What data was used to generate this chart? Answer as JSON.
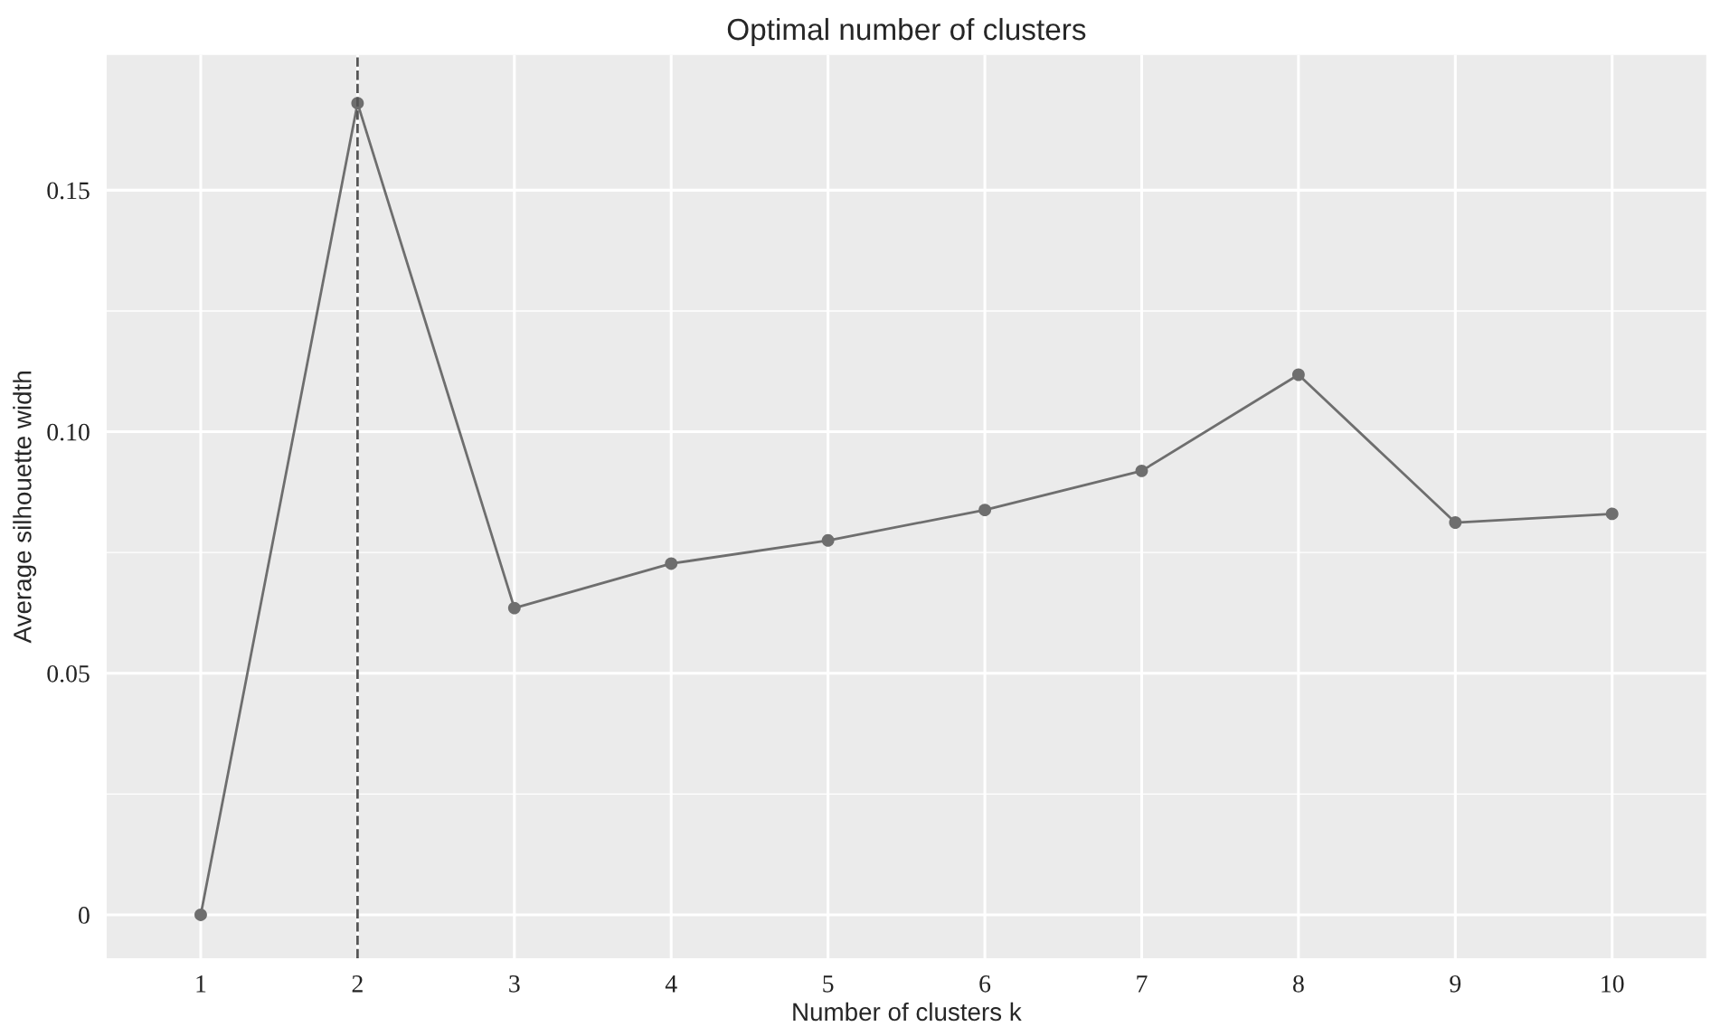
{
  "chart_data": {
    "type": "line",
    "title": "Optimal number of clusters",
    "xlabel": "Number of clusters k",
    "ylabel": "Average silhouette width",
    "categories": [
      "1",
      "2",
      "3",
      "4",
      "5",
      "6",
      "7",
      "8",
      "9",
      "10"
    ],
    "series": [
      {
        "color": "#6e6e6e",
        "values": [
          0,
          0.168,
          0.0635,
          0.0727,
          0.0775,
          0.0838,
          0.0919,
          0.1118,
          0.0812,
          0.083
        ]
      }
    ],
    "ylim": [
      -0.009,
      0.178
    ],
    "yticks": [
      0,
      {
        "value": 0.05,
        "label": "0.05"
      },
      {
        "value": 0.1,
        "label": "0.10"
      },
      {
        "value": 0.15,
        "label": "0.15"
      }
    ],
    "ref_lines": [
      {
        "axis": "x",
        "value": "2",
        "line_style": "dashed",
        "color": "#555555"
      }
    ],
    "grid": true,
    "marker": "circle",
    "line_style": "solid",
    "legend": false
  }
}
